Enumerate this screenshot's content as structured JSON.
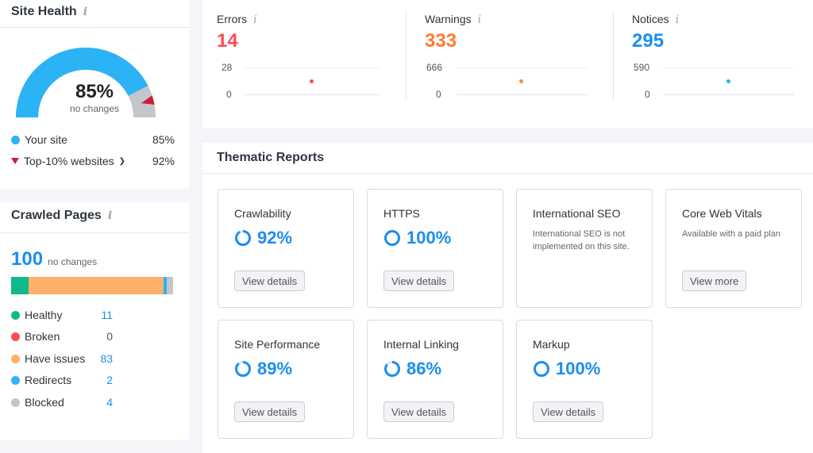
{
  "site_health": {
    "title": "Site Health",
    "info": "i",
    "percent": "85%",
    "subtitle": "no changes",
    "gauge_value": 85,
    "legend": [
      {
        "label": "Your site",
        "value": "85%",
        "color": "#2bb3f5"
      },
      {
        "label": "Top-10% websites",
        "value": "92%",
        "color": "#d01c3c"
      }
    ]
  },
  "crawled_pages": {
    "title": "Crawled Pages",
    "info": "i",
    "total": "100",
    "subtitle": "no changes",
    "items": [
      {
        "label": "Healthy",
        "value": "11",
        "count": 11,
        "color": "#0fb98a"
      },
      {
        "label": "Broken",
        "value": "0",
        "count": 0,
        "color": "#ff4953"
      },
      {
        "label": "Have issues",
        "value": "83",
        "count": 83,
        "color": "#ffb06a"
      },
      {
        "label": "Redirects",
        "value": "2",
        "count": 2,
        "color": "#2bb3f5"
      },
      {
        "label": "Blocked",
        "value": "4",
        "count": 4,
        "color": "#c3c6cc"
      }
    ]
  },
  "issues": [
    {
      "label": "Errors",
      "value": "14",
      "axis_max": "28",
      "axis_min": "0",
      "color": "#ff4953",
      "dot_color": "#ff4953"
    },
    {
      "label": "Warnings",
      "value": "333",
      "axis_max": "666",
      "axis_min": "0",
      "color": "#ff7a2f",
      "dot_color": "#ff8c3a"
    },
    {
      "label": "Notices",
      "value": "295",
      "axis_max": "590",
      "axis_min": "0",
      "color": "#1b8ef0",
      "dot_color": "#2bb3f5"
    }
  ],
  "thematic": {
    "title": "Thematic Reports",
    "reports": [
      {
        "name": "Crawlability",
        "percent": "92%",
        "value": 92,
        "button": "View details"
      },
      {
        "name": "HTTPS",
        "percent": "100%",
        "value": 100,
        "button": "View details"
      },
      {
        "name": "International SEO",
        "note": "International SEO is not implemented on this site."
      },
      {
        "name": "Core Web Vitals",
        "note": "Available with a paid plan",
        "button": "View more"
      },
      {
        "name": "Site Performance",
        "percent": "89%",
        "value": 89,
        "button": "View details"
      },
      {
        "name": "Internal Linking",
        "percent": "86%",
        "value": 86,
        "button": "View details"
      },
      {
        "name": "Markup",
        "percent": "100%",
        "value": 100,
        "button": "View details"
      }
    ]
  }
}
